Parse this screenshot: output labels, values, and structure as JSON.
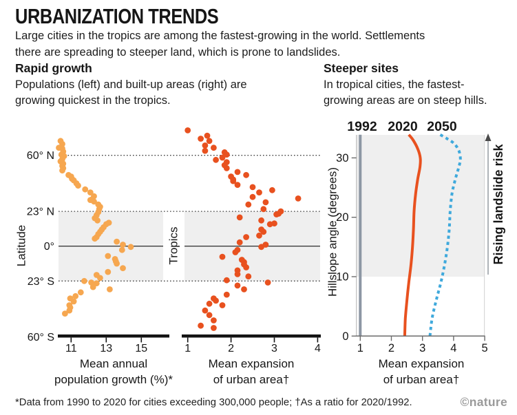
{
  "title": "URBANIZATION TRENDS",
  "intro": "Large cities in the tropics are among the fastest-growing in the world. Settlements\nthere are spreading to steeper land, which is prone to landslides.",
  "sections": {
    "rapid_growth": {
      "heading": "Rapid growth",
      "body": "Populations (left) and built-up areas (right) are\ngrowing quickest in the tropics."
    },
    "steeper_sites": {
      "heading": "Steeper sites",
      "body": "In tropical cities, the fastest-\ngrowing areas are on steep hills."
    }
  },
  "footer": {
    "note": "*Data from 1990 to 2020 for cities exceeding 300,000 people; †As a ratio for 2020/1992.",
    "credit": "©nature"
  },
  "colors": {
    "light_orange": "#F6A750",
    "red_orange": "#E8511F",
    "blue": "#3FA9DC",
    "gray_1992": "#8D97A4",
    "band_gray": "#EFEFEF",
    "axis_black": "#141414",
    "axis_gray": "#6B6B6B",
    "border_gray": "#C6C6C6"
  },
  "chart_data": [
    {
      "type": "scatter",
      "name": "population-growth-by-latitude",
      "xlabel_lines": [
        "Mean annual",
        "population growth (%)*"
      ],
      "ylabel": "Latitude",
      "band_label": "Tropics",
      "x_ticks": [
        11,
        13,
        15
      ],
      "xlim": [
        10.2,
        16.6
      ],
      "ylim": [
        -60,
        78
      ],
      "y_ticks": [
        {
          "value": 60,
          "label": "60° N"
        },
        {
          "value": 23,
          "label": "23° N"
        },
        {
          "value": 0,
          "label": "0°"
        },
        {
          "value": -23,
          "label": "23° S"
        },
        {
          "value": -60,
          "label": "60° S"
        }
      ],
      "grid_latitudes": [
        60,
        23,
        -23
      ],
      "tropics_band": [
        23,
        -23
      ],
      "point_color": "#F6A750",
      "points": [
        [
          10.4,
          69.5
        ],
        [
          10.5,
          67.5
        ],
        [
          10.3,
          65
        ],
        [
          10.5,
          64.5
        ],
        [
          10.55,
          62.5
        ],
        [
          10.45,
          60.5
        ],
        [
          10.6,
          59.5
        ],
        [
          10.5,
          57.5
        ],
        [
          10.4,
          56
        ],
        [
          10.55,
          54.5
        ],
        [
          10.5,
          53
        ],
        [
          10.55,
          51.5
        ],
        [
          10.5,
          50
        ],
        [
          10.85,
          47
        ],
        [
          11.0,
          46
        ],
        [
          11.05,
          44.5
        ],
        [
          11.15,
          43.5
        ],
        [
          11.3,
          41.5
        ],
        [
          11.4,
          40
        ],
        [
          11.8,
          37.5
        ],
        [
          12.1,
          35.5
        ],
        [
          12.3,
          33
        ],
        [
          12.2,
          31
        ],
        [
          12.1,
          30.5
        ],
        [
          12.3,
          29.5
        ],
        [
          12.55,
          27.5
        ],
        [
          12.65,
          26
        ],
        [
          12.6,
          24.5
        ],
        [
          12.55,
          22.5
        ],
        [
          12.45,
          20.5
        ],
        [
          12.35,
          18.5
        ],
        [
          12.5,
          17
        ],
        [
          13.0,
          14.5
        ],
        [
          13.15,
          15.5
        ],
        [
          12.85,
          12.5
        ],
        [
          12.75,
          11
        ],
        [
          12.65,
          9.5
        ],
        [
          12.55,
          8
        ],
        [
          12.45,
          6
        ],
        [
          12.35,
          5
        ],
        [
          13.6,
          3
        ],
        [
          13.95,
          1
        ],
        [
          14.4,
          -0.5
        ],
        [
          13.9,
          -2.5
        ],
        [
          13.1,
          -6.5
        ],
        [
          13.5,
          -8.5
        ],
        [
          13.55,
          -10
        ],
        [
          13.6,
          -11.5
        ],
        [
          13.95,
          -14.5
        ],
        [
          13.1,
          -17
        ],
        [
          12.45,
          -19
        ],
        [
          12.65,
          -21
        ],
        [
          11.75,
          -23
        ],
        [
          12.15,
          -24
        ],
        [
          12.45,
          -24.5
        ],
        [
          12.25,
          -27
        ],
        [
          13.2,
          -28.5
        ],
        [
          11.55,
          -30.5
        ],
        [
          11.25,
          -33
        ],
        [
          10.95,
          -34.5
        ],
        [
          11.15,
          -36.5
        ],
        [
          10.9,
          -39
        ],
        [
          10.95,
          -40.5
        ],
        [
          10.9,
          -42.5
        ],
        [
          10.65,
          -44.5
        ]
      ]
    },
    {
      "type": "scatter",
      "name": "urban-expansion-by-latitude",
      "xlabel_lines": [
        "Mean expansion",
        "of urban area†"
      ],
      "x_ticks": [
        1,
        2,
        3,
        4
      ],
      "xlim": [
        0.9,
        4.05
      ],
      "point_color": "#E8511F",
      "points": [
        [
          1.0,
          76.5
        ],
        [
          1.3,
          71
        ],
        [
          1.45,
          73
        ],
        [
          1.5,
          69.5
        ],
        [
          1.4,
          66.5
        ],
        [
          1.6,
          65
        ],
        [
          1.4,
          63
        ],
        [
          1.85,
          62
        ],
        [
          1.9,
          60.5
        ],
        [
          1.8,
          58.5
        ],
        [
          1.65,
          57
        ],
        [
          1.9,
          55.5
        ],
        [
          1.85,
          53.5
        ],
        [
          1.9,
          51.5
        ],
        [
          2.15,
          49
        ],
        [
          2.0,
          46
        ],
        [
          2.35,
          47
        ],
        [
          2.05,
          44
        ],
        [
          2.05,
          43
        ],
        [
          2.15,
          40.5
        ],
        [
          2.5,
          39
        ],
        [
          2.65,
          35.5
        ],
        [
          2.5,
          32.5
        ],
        [
          2.95,
          37
        ],
        [
          3.55,
          31.5
        ],
        [
          2.4,
          27.5
        ],
        [
          2.8,
          29
        ],
        [
          2.75,
          24.5
        ],
        [
          3.1,
          21.5
        ],
        [
          3.15,
          23
        ],
        [
          3.05,
          21
        ],
        [
          2.2,
          19
        ],
        [
          2.7,
          17
        ],
        [
          3.0,
          15
        ],
        [
          2.9,
          14.5
        ],
        [
          2.7,
          11
        ],
        [
          2.75,
          9.5
        ],
        [
          2.65,
          7
        ],
        [
          2.35,
          6
        ],
        [
          2.2,
          2.5
        ],
        [
          2.7,
          -0.5
        ],
        [
          2.8,
          1
        ],
        [
          2.15,
          -2.5
        ],
        [
          2.1,
          -4
        ],
        [
          1.8,
          -7
        ],
        [
          2.25,
          -9
        ],
        [
          2.3,
          -10.5
        ],
        [
          2.3,
          -12
        ],
        [
          2.35,
          -14
        ],
        [
          2.15,
          -16
        ],
        [
          2.15,
          -18.5
        ],
        [
          2.4,
          -20
        ],
        [
          1.9,
          -22.5
        ],
        [
          2.85,
          -24
        ],
        [
          2.15,
          -26
        ],
        [
          2.3,
          -28.5
        ],
        [
          1.9,
          -32
        ],
        [
          1.6,
          -34.5
        ],
        [
          1.65,
          -36
        ],
        [
          1.5,
          -38
        ],
        [
          1.8,
          -39
        ],
        [
          1.4,
          -42.5
        ],
        [
          1.5,
          -45.5
        ],
        [
          1.6,
          -49
        ],
        [
          1.3,
          -52.5
        ],
        [
          1.6,
          -54
        ]
      ]
    },
    {
      "type": "line",
      "name": "expansion-by-hillslope-angle",
      "xlabel_lines": [
        "Mean expansion",
        "of urban area†"
      ],
      "ylabel": "Hillslope angle (degrees)",
      "annotation": "Rising landslide risk",
      "x_ticks": [
        1,
        2,
        3,
        4,
        5
      ],
      "y_ticks": [
        0,
        10,
        20,
        30
      ],
      "xlim": [
        0.88,
        5.02
      ],
      "ylim": [
        0,
        33.9
      ],
      "shaded_above_degrees": 10,
      "series": [
        {
          "name": "1992",
          "color": "#8D97A4",
          "style": "solid",
          "points": [
            [
              1,
              0
            ],
            [
              1,
              33.9
            ]
          ]
        },
        {
          "name": "2020",
          "color": "#E8511F",
          "style": "solid",
          "points": [
            [
              2.43,
              0
            ],
            [
              2.45,
              3
            ],
            [
              2.5,
              6
            ],
            [
              2.56,
              9
            ],
            [
              2.63,
              12
            ],
            [
              2.68,
              15
            ],
            [
              2.71,
              18
            ],
            [
              2.73,
              21
            ],
            [
              2.78,
              24
            ],
            [
              2.85,
              26.5
            ],
            [
              2.92,
              28.5
            ],
            [
              2.93,
              30
            ],
            [
              2.85,
              31.5
            ],
            [
              2.7,
              33
            ],
            [
              2.56,
              33.9
            ]
          ]
        },
        {
          "name": "2050",
          "color": "#3FA9DC",
          "style": "dashed",
          "points": [
            [
              3.24,
              0
            ],
            [
              3.31,
              3
            ],
            [
              3.44,
              6
            ],
            [
              3.59,
              9
            ],
            [
              3.71,
              12
            ],
            [
              3.8,
              15
            ],
            [
              3.86,
              18
            ],
            [
              3.89,
              21
            ],
            [
              3.95,
              24
            ],
            [
              4.06,
              26.5
            ],
            [
              4.17,
              28.5
            ],
            [
              4.22,
              29.8
            ],
            [
              4.17,
              31.2
            ],
            [
              4.02,
              32.4
            ],
            [
              3.8,
              33.2
            ],
            [
              3.57,
              33.9
            ]
          ]
        }
      ]
    }
  ]
}
